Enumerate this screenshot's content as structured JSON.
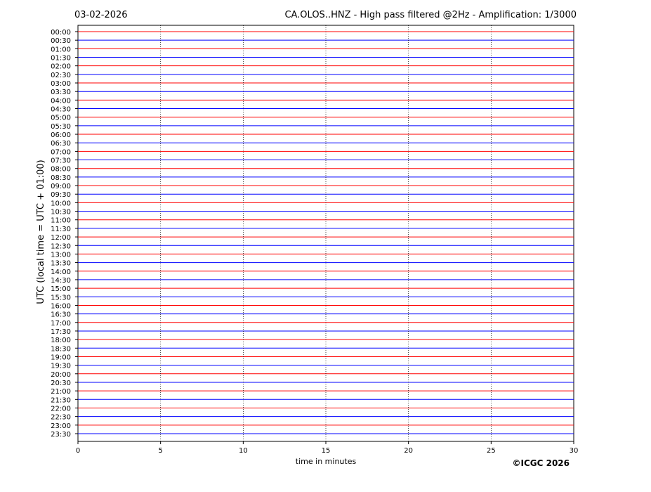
{
  "chart_data": {
    "type": "helicorder",
    "date": "03-02-2026",
    "title": "CA.OLOS..HNZ - High pass filtered @2Hz - Amplification: 1/3000",
    "xlabel": "time in minutes",
    "ylabel": "UTC (local time = UTC + 01:00)",
    "copyright": "©ICGC 2026",
    "categories": [
      "00:00",
      "00:30",
      "01:00",
      "01:30",
      "02:00",
      "02:30",
      "03:00",
      "03:30",
      "04:00",
      "04:30",
      "05:00",
      "05:30",
      "06:00",
      "06:30",
      "07:00",
      "07:30",
      "08:00",
      "08:30",
      "09:00",
      "09:30",
      "10:00",
      "10:30",
      "11:00",
      "11:30",
      "12:00",
      "12:30",
      "13:00",
      "13:30",
      "14:00",
      "14:30",
      "15:00",
      "15:30",
      "16:00",
      "16:30",
      "17:00",
      "17:30",
      "18:00",
      "18:30",
      "19:00",
      "19:30",
      "20:00",
      "20:30",
      "21:00",
      "21:30",
      "22:00",
      "22:30",
      "23:00",
      "23:30"
    ],
    "trace_colors": [
      "#ff0000",
      "#0000ff"
    ],
    "xlim": [
      0,
      30
    ],
    "xticks": [
      0,
      5,
      10,
      15,
      20,
      25,
      30
    ],
    "grid": true
  }
}
